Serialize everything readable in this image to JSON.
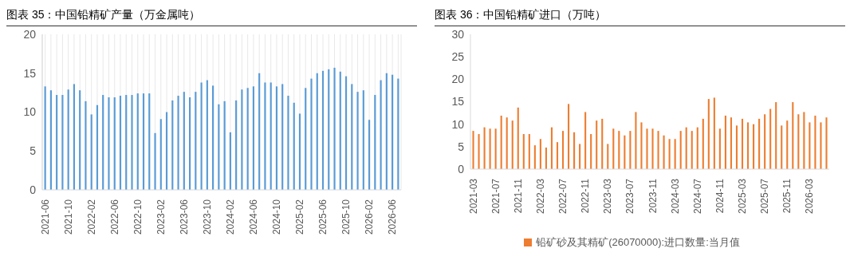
{
  "chart_data": [
    {
      "type": "bar",
      "title": "图表 35：中国铅精矿产量（万金属吨）",
      "categories": [
        "2021-06",
        null,
        null,
        null,
        "2021-10",
        null,
        null,
        null,
        "2022-02",
        null,
        null,
        null,
        "2022-06",
        null,
        null,
        null,
        "2022-10",
        null,
        null,
        null,
        "2023-02",
        null,
        null,
        null,
        "2023-06",
        null,
        null,
        null,
        "2023-10",
        null,
        null,
        null,
        "2024-02",
        null,
        null,
        null,
        "2024-06",
        null,
        null,
        null,
        "2024-10",
        null,
        null,
        null,
        "2025-02",
        null,
        null,
        null,
        "2025-06",
        null,
        null,
        null,
        "2025-10",
        null,
        null,
        null,
        "2026-02",
        null,
        null,
        null,
        "2026-06",
        null
      ],
      "series": [
        {
          "color": "#5b9bd5",
          "values": [
            13.3,
            12.8,
            12.2,
            12.2,
            12.9,
            13.6,
            12.8,
            11.4,
            9.7,
            10.9,
            12.2,
            11.9,
            11.9,
            12.1,
            12.2,
            12.2,
            12.4,
            12.4,
            12.4,
            7.3,
            9.1,
            10.0,
            11.5,
            12.1,
            12.6,
            11.9,
            12.6,
            13.8,
            14.1,
            13.4,
            11.0,
            11.4,
            7.4,
            11.5,
            12.9,
            13.1,
            13.3,
            15.0,
            13.8,
            13.8,
            13.3,
            13.6,
            12.1,
            11.2,
            9.8,
            13.1,
            14.3,
            15.0,
            15.3,
            15.5,
            15.7,
            15.2,
            14.6,
            13.6,
            12.6,
            12.8,
            9.0,
            12.2,
            14.1,
            15.0,
            14.8,
            14.3
          ]
        }
      ],
      "ylim": [
        0,
        20
      ],
      "yticks": [
        0,
        5,
        10,
        15,
        20
      ],
      "grid": "x",
      "legend": false
    },
    {
      "type": "bar",
      "title": "图表 36：中国铅精矿进口（万吨）",
      "categories": [
        "2021-03",
        null,
        null,
        null,
        "2021-07",
        null,
        null,
        null,
        "2021-11",
        null,
        null,
        null,
        "2022-03",
        null,
        null,
        null,
        "2022-07",
        null,
        null,
        null,
        "2022-11",
        null,
        null,
        null,
        "2023-03",
        null,
        null,
        null,
        "2023-07",
        null,
        null,
        null,
        "2023-11",
        null,
        null,
        null,
        "2024-03",
        null,
        null,
        null,
        "2024-07",
        null,
        null,
        null,
        "2024-11",
        null,
        null,
        null,
        "2025-03",
        null,
        null,
        null,
        "2025-07",
        null,
        null,
        null,
        "2025-11",
        null,
        null,
        null,
        "2026-03",
        null,
        null,
        null
      ],
      "series": [
        {
          "name": "铅矿砂及其精矿(26070000):进口数量:当月值",
          "color": "#ed7d31",
          "values": [
            8.5,
            7.8,
            9.3,
            9.0,
            9.0,
            11.9,
            11.5,
            10.8,
            13.7,
            7.8,
            7.8,
            5.3,
            6.7,
            4.8,
            9.3,
            6.0,
            8.5,
            14.5,
            8.2,
            5.6,
            12.7,
            7.8,
            10.8,
            11.2,
            5.6,
            9.0,
            8.5,
            7.5,
            8.5,
            12.7,
            10.4,
            9.0,
            9.0,
            8.5,
            7.5,
            6.7,
            6.7,
            8.5,
            9.3,
            8.5,
            9.3,
            11.2,
            15.6,
            15.9,
            9.0,
            11.9,
            11.5,
            9.7,
            11.2,
            10.4,
            10.0,
            11.2,
            12.2,
            13.4,
            14.9,
            9.7,
            10.8,
            14.9,
            12.2,
            12.7,
            10.4,
            11.9,
            10.4,
            11.5
          ]
        }
      ],
      "ylim": [
        0,
        30
      ],
      "yticks": [
        0,
        5,
        10,
        15,
        20,
        25,
        30
      ],
      "grid": false,
      "legend": "bottom"
    }
  ]
}
